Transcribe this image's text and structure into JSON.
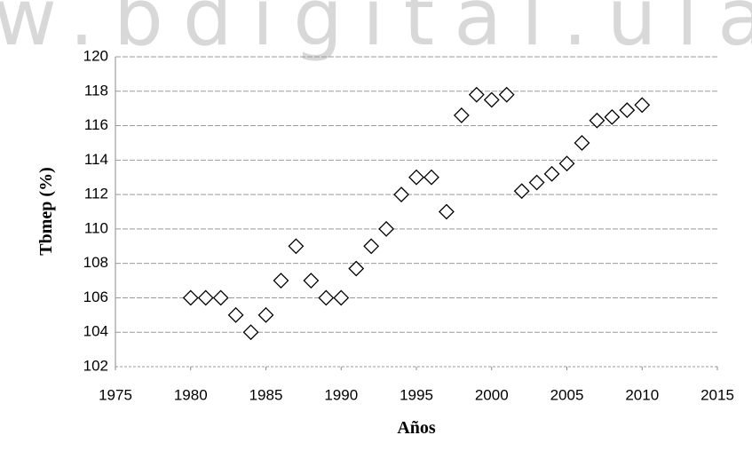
{
  "chart_data": {
    "type": "scatter",
    "watermark": "w.bdigital.ula",
    "xlabel": "Años",
    "ylabel": "Tbmep (%)",
    "x": [
      1980,
      1981,
      1982,
      1983,
      1984,
      1985,
      1986,
      1987,
      1988,
      1989,
      1990,
      1991,
      1992,
      1993,
      1994,
      1995,
      1996,
      1997,
      1998,
      1999,
      2000,
      2001,
      2002,
      2003,
      2004,
      2005,
      2006,
      2007,
      2008,
      2009,
      2010
    ],
    "values": [
      106,
      106,
      106,
      105,
      104,
      105,
      107,
      109,
      107,
      106,
      106,
      107.7,
      109,
      110,
      112,
      113,
      113,
      111,
      116.6,
      117.8,
      117.5,
      117.8,
      112.2,
      112.7,
      113.2,
      113.8,
      115,
      116.3,
      116.5,
      116.9,
      117.2
    ],
    "color": "#000000",
    "xlim": [
      1975,
      2015
    ],
    "xticks": [
      1975,
      1980,
      1985,
      1990,
      1995,
      2000,
      2005,
      2010,
      2015
    ],
    "ylim": [
      102,
      120
    ],
    "yticks": [
      102,
      104,
      106,
      108,
      110,
      112,
      114,
      116,
      118,
      120
    ],
    "grid": true
  }
}
